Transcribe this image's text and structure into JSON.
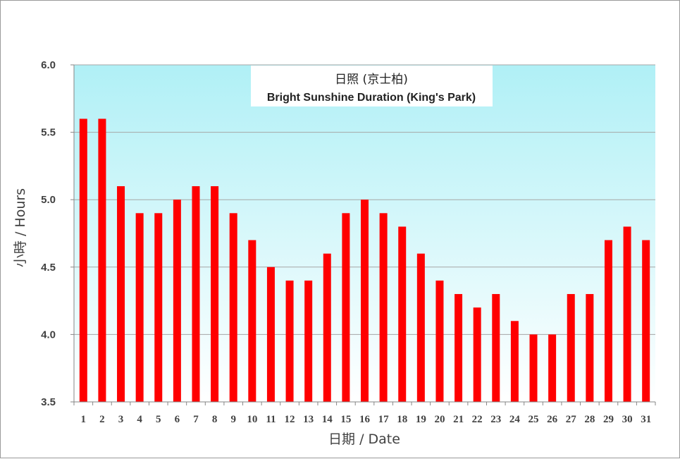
{
  "chart_data": {
    "type": "bar",
    "title": "日照 (京士柏)",
    "subtitle": "Bright Sunshine Duration (King's Park)",
    "xlabel": "日期 / Date",
    "ylabel": "小時 / Hours",
    "categories": [
      "1",
      "2",
      "3",
      "4",
      "5",
      "6",
      "7",
      "8",
      "9",
      "10",
      "11",
      "12",
      "13",
      "14",
      "15",
      "16",
      "17",
      "18",
      "19",
      "20",
      "21",
      "22",
      "23",
      "24",
      "25",
      "26",
      "27",
      "28",
      "29",
      "30",
      "31"
    ],
    "values": [
      5.6,
      5.6,
      5.1,
      4.9,
      4.9,
      5.0,
      5.1,
      5.1,
      4.9,
      4.7,
      4.5,
      4.4,
      4.4,
      4.6,
      4.9,
      5.0,
      4.9,
      4.8,
      4.6,
      4.4,
      4.3,
      4.2,
      4.3,
      4.1,
      4.0,
      4.0,
      4.3,
      4.3,
      4.7,
      4.8,
      4.7
    ],
    "yticks": [
      "3.5",
      "4.0",
      "4.5",
      "5.0",
      "5.5",
      "6.0"
    ],
    "ylim": [
      3.5,
      6.0
    ],
    "grid": true,
    "legend": false,
    "colors": {
      "bar": "#ff0000",
      "plot_top": "#b0f0f6",
      "plot_bottom": "#ffffff",
      "grid": "#a6a6a6",
      "axis": "#868686"
    }
  }
}
